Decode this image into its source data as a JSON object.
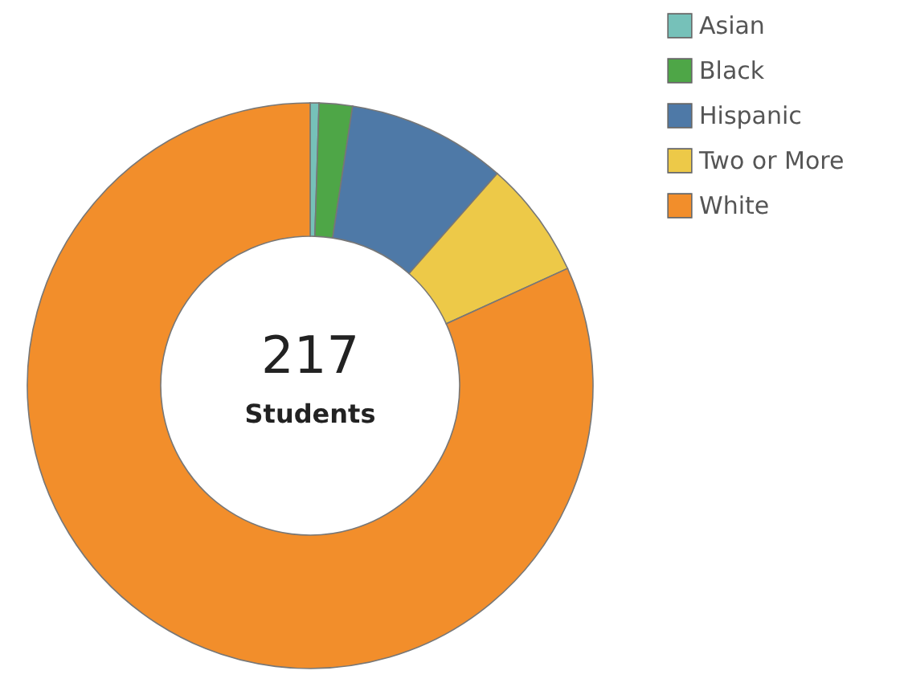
{
  "chart_data": {
    "type": "donut",
    "categories": [
      "Asian",
      "Black",
      "Hispanic",
      "Two or More",
      "White"
    ],
    "values": [
      0.5,
      1.9,
      9.1,
      6.7,
      81.8
    ],
    "colors": [
      "#76c1b9",
      "#4ea647",
      "#4e79a7",
      "#edc948",
      "#f28e2b"
    ],
    "annotations": [
      "217",
      "Students"
    ],
    "legend": "top right"
  }
}
